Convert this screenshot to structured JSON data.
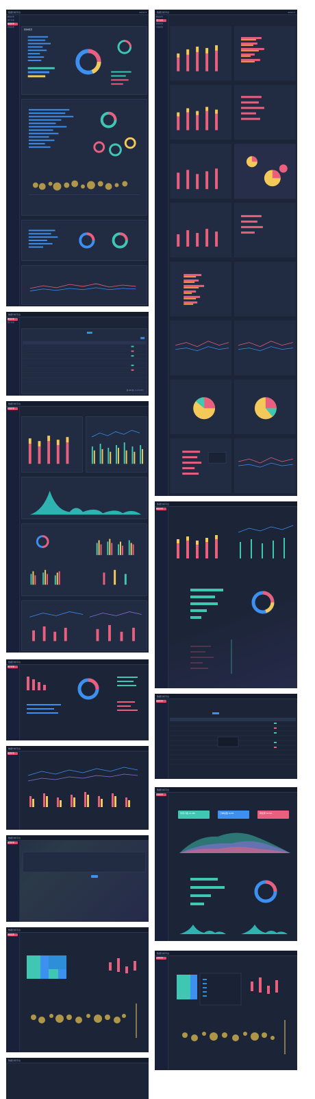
{
  "colors": {
    "pink": "#e8607e",
    "yellow": "#f3c95a",
    "teal": "#3fc7b3",
    "blue": "#3d8ff0",
    "orange": "#f2954b",
    "purple": "#8a6fd8",
    "bg": "#1c2538"
  },
  "app": {
    "logo": "数据分析平台",
    "nav": [
      "首页",
      "报表",
      "设置"
    ],
    "user": "admin ▾"
  },
  "side_items": [
    "概览分析",
    "用户分析",
    "渠道分析",
    "内容分析",
    "运营分析",
    "系统设置"
  ],
  "screens": [
    {
      "id": "s1",
      "title": "整体概况"
    },
    {
      "id": "s2",
      "title": "数据列表"
    },
    {
      "id": "s3",
      "title": "趋势分析"
    },
    {
      "id": "s4",
      "title": "用户画像"
    },
    {
      "id": "s5",
      "title": "周期对比"
    },
    {
      "id": "s6",
      "title": "筛选配置"
    },
    {
      "id": "s7",
      "title": "分布分析"
    },
    {
      "id": "s8",
      "title": "多维分析"
    },
    {
      "id": "s9",
      "title": "指标对比"
    },
    {
      "id": "s10",
      "title": "明细列表"
    },
    {
      "id": "s11",
      "title": "数据总览"
    },
    {
      "id": "s12",
      "title": "热力分布"
    }
  ],
  "kpis": [
    {
      "label": "访问人数 12,480",
      "color": "#3fc7b3"
    },
    {
      "label": "订单总数 8,236",
      "color": "#3d8ff0"
    },
    {
      "label": "转化率 18.6%",
      "color": "#e8607e"
    }
  ],
  "table_headers": [
    "序号",
    "名称",
    "类型",
    "状态",
    "创建时间",
    "更新时间",
    "来源",
    "操作"
  ],
  "pager": "共 120 条  < 1 2 3 4 5 >",
  "donut_center": "68.5%",
  "search_btn": "查询"
}
